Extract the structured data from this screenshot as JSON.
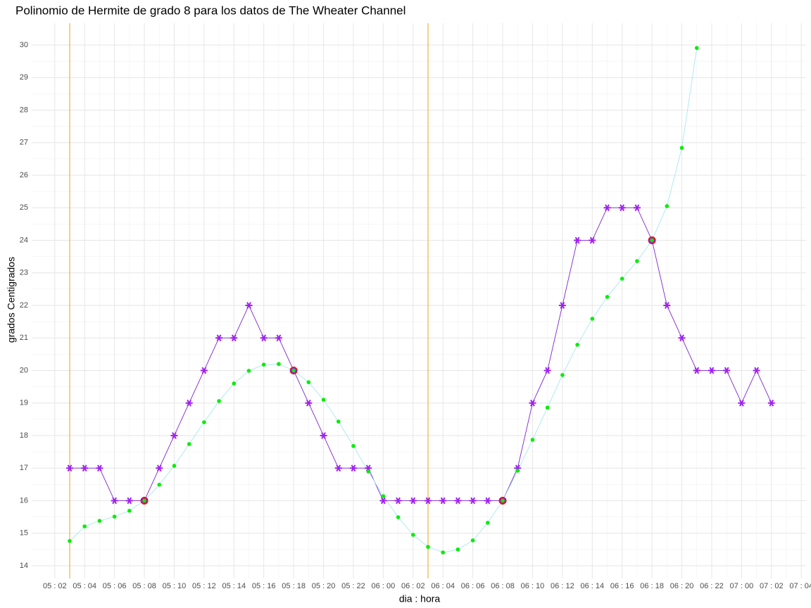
{
  "chart_data": {
    "type": "line",
    "title": "Polinomio de Hermite de grado 8 para los datos de The Wheater Channel",
    "xlabel": "dia : hora",
    "ylabel": "grados Centigrados",
    "grid": true,
    "xlim": [
      0.454,
      52.32
    ],
    "ylim": [
      13.61,
      30.67
    ],
    "yticks": [
      14,
      15,
      16,
      17,
      18,
      19,
      20,
      21,
      22,
      23,
      24,
      25,
      26,
      27,
      28,
      29,
      30
    ],
    "xticks": [
      {
        "value": 2,
        "label": "05 : 02"
      },
      {
        "value": 4,
        "label": "05 : 04"
      },
      {
        "value": 6,
        "label": "05 : 06"
      },
      {
        "value": 8,
        "label": "05 : 08"
      },
      {
        "value": 10,
        "label": "05 : 10"
      },
      {
        "value": 12,
        "label": "05 : 12"
      },
      {
        "value": 14,
        "label": "05 : 14"
      },
      {
        "value": 16,
        "label": "05 : 16"
      },
      {
        "value": 18,
        "label": "05 : 18"
      },
      {
        "value": 20,
        "label": "05 : 20"
      },
      {
        "value": 22,
        "label": "05 : 22"
      },
      {
        "value": 24,
        "label": "06 : 00"
      },
      {
        "value": 26,
        "label": "06 : 02"
      },
      {
        "value": 28,
        "label": "06 : 04"
      },
      {
        "value": 30,
        "label": "06 : 06"
      },
      {
        "value": 32,
        "label": "06 : 08"
      },
      {
        "value": 34,
        "label": "06 : 10"
      },
      {
        "value": 36,
        "label": "06 : 12"
      },
      {
        "value": 38,
        "label": "06 : 14"
      },
      {
        "value": 40,
        "label": "06 : 16"
      },
      {
        "value": 42,
        "label": "06 : 18"
      },
      {
        "value": 44,
        "label": "06 : 20"
      },
      {
        "value": 46,
        "label": "06 : 22"
      },
      {
        "value": 48,
        "label": "07 : 00"
      },
      {
        "value": 50,
        "label": "07 : 02"
      },
      {
        "value": 52,
        "label": "07 : 04"
      }
    ],
    "vlines": {
      "x": [
        3,
        27
      ],
      "color": "#e8a317"
    },
    "series": [
      {
        "color": "#a020f0",
        "line_color": "#7d26cd",
        "marker": "star",
        "x": [
          3,
          4,
          5,
          6,
          7,
          8,
          9,
          10,
          11,
          12,
          13,
          14,
          15,
          16,
          17,
          18,
          19,
          20,
          21,
          22,
          23,
          24,
          25,
          26,
          27,
          28,
          29,
          30,
          31,
          32,
          33,
          34,
          35,
          36,
          37,
          38,
          39,
          40,
          41,
          42,
          43,
          44,
          45,
          46,
          47,
          48,
          49,
          50
        ],
        "values": [
          17,
          17,
          17,
          16,
          16,
          16,
          17,
          18,
          19,
          20,
          21,
          21,
          22,
          21,
          21,
          20,
          19,
          18,
          17,
          17,
          17,
          16,
          16,
          16,
          16,
          16,
          16,
          16,
          16,
          16,
          17,
          19,
          20,
          22,
          24,
          24,
          25,
          25,
          25,
          24,
          22,
          21,
          20,
          20,
          20,
          19,
          20,
          19
        ]
      },
      {
        "color": "#00ee00",
        "line_color": "#a8e8f0",
        "marker": "dot",
        "x": [
          3,
          4,
          5,
          6,
          7,
          8,
          9,
          10,
          11,
          12,
          13,
          14,
          15,
          16,
          17,
          18,
          19,
          20,
          21,
          22,
          23,
          24,
          25,
          26,
          27,
          28,
          29,
          30,
          31,
          32,
          33,
          34,
          35,
          36,
          37,
          38,
          39,
          40,
          41,
          42,
          43,
          44,
          45
        ],
        "values": [
          14.76,
          15.21,
          15.38,
          15.51,
          15.69,
          16,
          16.49,
          17.07,
          17.74,
          18.41,
          19.06,
          19.6,
          19.99,
          20.18,
          20.2,
          20,
          19.64,
          19.1,
          18.43,
          17.68,
          16.9,
          16.14,
          15.49,
          14.95,
          14.58,
          14.41,
          14.5,
          14.78,
          15.32,
          16,
          16.92,
          17.87,
          18.86,
          19.86,
          20.79,
          21.59,
          22.26,
          22.82,
          23.36,
          24,
          25.05,
          26.84,
          29.91
        ]
      }
    ],
    "nodes": {
      "color": "#ee0000",
      "x": [
        8,
        18,
        32,
        42
      ],
      "values": [
        16,
        20,
        16,
        24
      ]
    }
  }
}
